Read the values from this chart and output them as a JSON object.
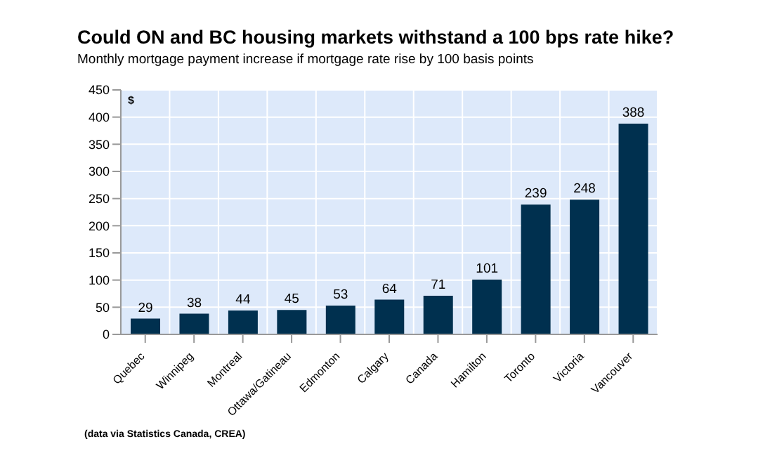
{
  "chart_data": {
    "type": "bar",
    "title": "Could ON and BC housing markets withstand a 100 bps rate hike?",
    "subtitle": "Monthly mortgage payment increase if mortgage rate rise by 100 basis points",
    "ylabel": "$",
    "categories": [
      "Quebec",
      "Winnipeg",
      "Montreal",
      "Ottawa/Gatineau",
      "Edmonton",
      "Calgary",
      "Canada",
      "Hamilton",
      "Toronto",
      "Victoria",
      "Vancouver"
    ],
    "values": [
      29,
      38,
      44,
      45,
      53,
      64,
      71,
      101,
      239,
      248,
      388
    ],
    "color": "#00304f",
    "ylim": [
      0,
      450
    ],
    "yticks": [
      0,
      50,
      100,
      150,
      200,
      250,
      300,
      350,
      400,
      450
    ],
    "grid": true,
    "data_labels": true,
    "annotations": [
      "(data via Statistics Canada, CREA)"
    ]
  }
}
